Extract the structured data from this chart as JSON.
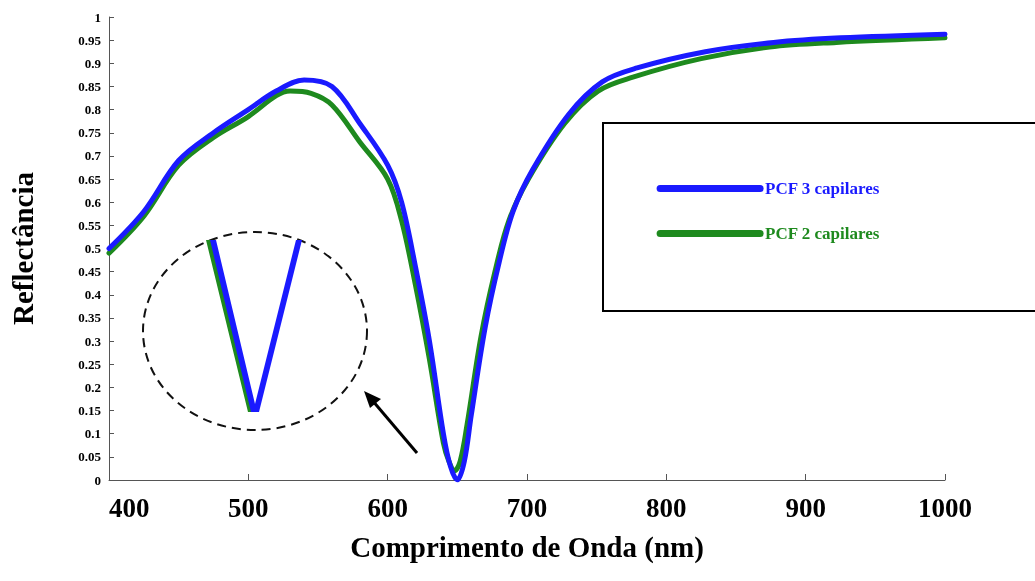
{
  "chart_data": {
    "type": "line",
    "xlabel": "Comprimento de Onda (nm)",
    "ylabel": "Reflectância",
    "xlim": [
      400,
      1000
    ],
    "xticks": [
      400,
      500,
      600,
      700,
      800,
      900,
      1000
    ],
    "ylim": [
      0,
      1
    ],
    "yticks": [
      0,
      0.05,
      0.1,
      0.15,
      0.2,
      0.25,
      0.3,
      0.35,
      0.4,
      0.45,
      0.5,
      0.55,
      0.6,
      0.65,
      0.7,
      0.75,
      0.8,
      0.85,
      0.9,
      0.95,
      1
    ],
    "grid": false,
    "legend": "right",
    "marker": "none",
    "line_style": "solid",
    "series": [
      {
        "name": "PCF 3 capilares",
        "color": "#1a1aff",
        "x": [
          400,
          425,
          450,
          475,
          500,
          520,
          540,
          560,
          580,
          600,
          610,
          620,
          630,
          640,
          645,
          650,
          655,
          660,
          670,
          680,
          690,
          704,
          730,
          754,
          779,
          828,
          877,
          925,
          1000
        ],
        "values": [
          0.5,
          0.58,
          0.69,
          0.75,
          0.8,
          0.84,
          0.864,
          0.85,
          0.77,
          0.68,
          0.6,
          0.46,
          0.3,
          0.1,
          0.03,
          0.0,
          0.04,
          0.14,
          0.33,
          0.47,
          0.58,
          0.67,
          0.79,
          0.86,
          0.89,
          0.925,
          0.945,
          0.955,
          0.963
        ]
      },
      {
        "name": "PCF 2 capilares",
        "color": "#1e8a1e",
        "x": [
          400,
          425,
          450,
          475,
          500,
          520,
          530,
          545,
          560,
          580,
          600,
          610,
          620,
          630,
          640,
          644,
          648,
          652,
          657,
          667,
          677,
          687,
          701,
          727,
          751,
          776,
          825,
          874,
          922,
          1000
        ],
        "values": [
          0.49,
          0.57,
          0.68,
          0.74,
          0.785,
          0.83,
          0.84,
          0.835,
          0.81,
          0.73,
          0.65,
          0.56,
          0.42,
          0.26,
          0.08,
          0.04,
          0.02,
          0.04,
          0.12,
          0.31,
          0.45,
          0.56,
          0.65,
          0.77,
          0.84,
          0.87,
          0.91,
          0.935,
          0.945,
          0.955
        ]
      }
    ]
  }
}
